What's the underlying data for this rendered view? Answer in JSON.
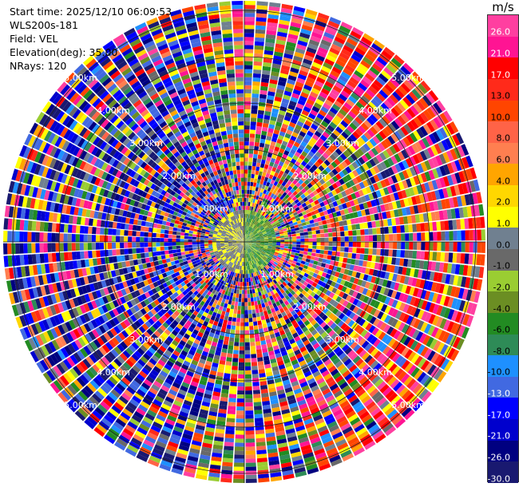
{
  "header": {
    "start_time": "Start time: 2025/12/10 06:09:53",
    "instrument": "WLS200s-181",
    "field": "Field: VEL",
    "elevation": "Elevation(deg): 35.00",
    "nrays": "NRays: 120"
  },
  "range_labels": [
    "1.00km",
    "2.00km",
    "3.00km",
    "4.00km",
    "5.00km"
  ],
  "colorbar": {
    "unit": "m/s",
    "labels": [
      "26.0",
      "21.0",
      "17.0",
      "13.0",
      "10.0",
      "8.0",
      "6.0",
      "4.0",
      "2.0",
      "1.0",
      "0.0",
      "-1.0",
      "-2.0",
      "-4.0",
      "-6.0",
      "-8.0",
      "-10.0",
      "-13.0",
      "-17.0",
      "-21.0",
      "-26.0",
      "-30.0"
    ],
    "colors": [
      "#ff3fa0",
      "#ff1493",
      "#ff0000",
      "#ff2a1a",
      "#ff4500",
      "#ff6347",
      "#ff7f50",
      "#ffa500",
      "#ffd700",
      "#ffff00",
      "#708090",
      "#696969",
      "#9acd32",
      "#6b8e23",
      "#228b22",
      "#2e8b57",
      "#1e90ff",
      "#4169e1",
      "#0000ff",
      "#0000cd",
      "#000080",
      "#191970"
    ]
  }
}
